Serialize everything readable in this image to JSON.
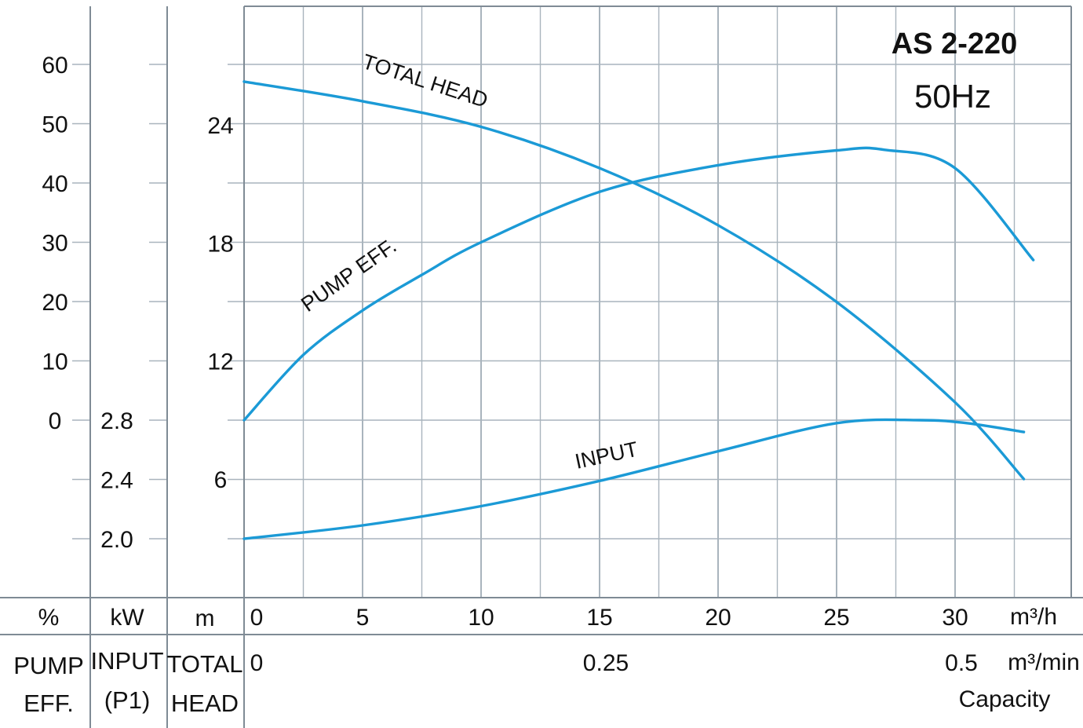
{
  "chart_data": {
    "type": "line",
    "title": "AS 2-220",
    "subtitle": "50Hz",
    "xlabel": "Capacity",
    "x_unit": "m³/h",
    "x_unit_secondary": "m³/min",
    "x_ticks": [
      0,
      5,
      10,
      15,
      20,
      25,
      30
    ],
    "x_ticks_secondary": [
      {
        "label": "0",
        "value_m3h": 0
      },
      {
        "label": "0.25",
        "value_m3h": 15
      },
      {
        "label": "0.5",
        "value_m3h": 30
      }
    ],
    "xlim": [
      0,
      35
    ],
    "grid": true,
    "axes": {
      "eff": {
        "unit": "%",
        "name_lines": [
          "PUMP",
          "EFF."
        ],
        "ticks": [
          0,
          10,
          20,
          30,
          40,
          50,
          60
        ],
        "range": [
          0,
          60
        ]
      },
      "input": {
        "unit": "kW",
        "name_lines": [
          "INPUT",
          "(P1)"
        ],
        "ticks": [
          2.0,
          2.4,
          2.8
        ],
        "ticks_text": [
          "2.0",
          "2.4",
          "2.8"
        ],
        "range": [
          2.0,
          2.8
        ]
      },
      "head": {
        "unit": "m",
        "name_lines": [
          "TOTAL",
          "HEAD"
        ],
        "ticks": [
          6,
          12,
          18,
          24
        ],
        "range": [
          6,
          24
        ]
      }
    },
    "series": [
      {
        "name": "TOTAL HEAD",
        "axis": "head",
        "x": [
          0,
          5,
          10,
          15,
          20,
          25,
          30,
          32.9
        ],
        "y": [
          26.2,
          25.2,
          23.9,
          21.8,
          18.9,
          15.0,
          9.9,
          6.0
        ]
      },
      {
        "name": "PUMP EFF.",
        "axis": "eff",
        "x": [
          0,
          2.5,
          5,
          7.5,
          10,
          15,
          20,
          25,
          27,
          30,
          33.3
        ],
        "y": [
          0,
          11,
          18.5,
          24.5,
          30,
          38.5,
          43,
          45.5,
          45.6,
          42.5,
          27
        ]
      },
      {
        "name": "INPUT",
        "axis": "input",
        "x": [
          0,
          5,
          10,
          15,
          20,
          25,
          28.5,
          30.5,
          32.9
        ],
        "y": [
          2.0,
          2.09,
          2.22,
          2.39,
          2.59,
          2.78,
          2.8,
          2.78,
          2.72
        ]
      }
    ]
  },
  "colors": {
    "curve": "#1b9ad6",
    "grid": "#a9b4bd",
    "frame": "#7f8b95"
  }
}
